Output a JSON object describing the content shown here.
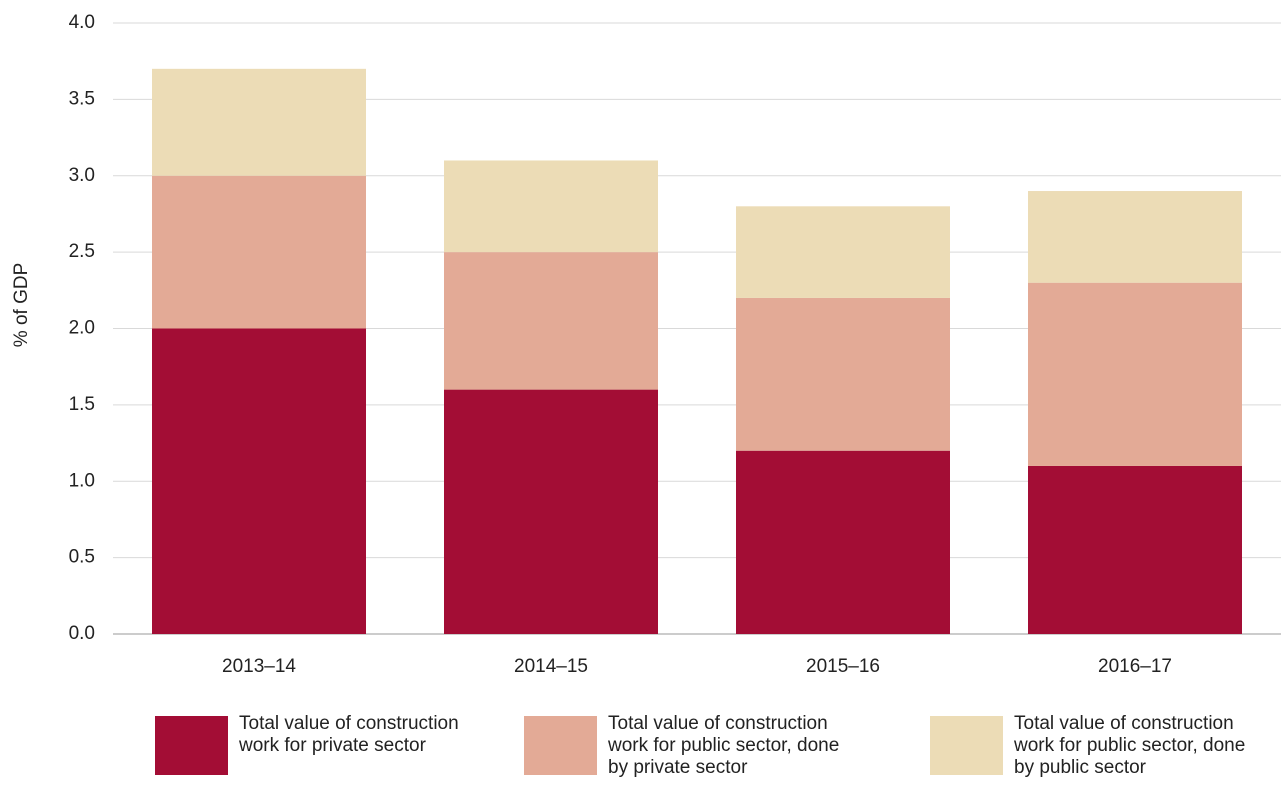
{
  "chart_data": {
    "type": "stacked-bar",
    "y_label": "% of GDP",
    "categories": [
      "2013–14",
      "2014–15",
      "2015–16",
      "2016–17"
    ],
    "series": [
      {
        "name": "Total value of construction work for private sector",
        "color": "#a30d35",
        "values": [
          2.0,
          1.6,
          1.2,
          1.1
        ]
      },
      {
        "name": "Total value of construction work for public sector, done by private sector",
        "color": "#e3aa96",
        "values": [
          1.0,
          0.9,
          1.0,
          1.2
        ]
      },
      {
        "name": "Total value of construction work for public sector, done by public sector",
        "color": "#ecdcb6",
        "values": [
          0.7,
          0.6,
          0.6,
          0.6
        ]
      }
    ],
    "ylim": [
      0,
      4
    ],
    "yticks": [
      {
        "value": 0,
        "label": "0.0"
      },
      0.5,
      {
        "value": 1,
        "label": "1.0"
      },
      1.5,
      {
        "value": 2,
        "label": "2.0"
      },
      2.5,
      {
        "value": 3,
        "label": "3.0"
      },
      3.5,
      {
        "value": 4,
        "label": "4.0"
      }
    ],
    "grid": true,
    "legend": "bottom"
  }
}
